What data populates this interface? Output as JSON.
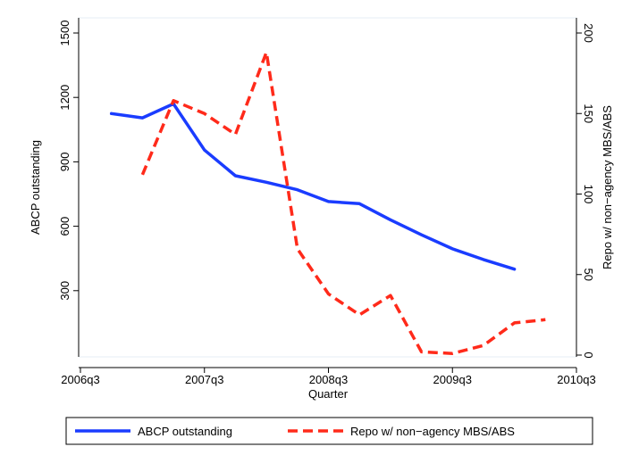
{
  "chart_data": {
    "type": "line",
    "xlabel": "Quarter",
    "x_ticks": [
      "2006q3",
      "2007q3",
      "2008q3",
      "2009q3",
      "2010q3"
    ],
    "x_range": [
      "2006q3",
      "2010q3"
    ],
    "x": [
      "2006q4",
      "2007q1",
      "2007q2",
      "2007q3",
      "2007q4",
      "2008q1",
      "2008q2",
      "2008q3",
      "2008q4",
      "2009q1",
      "2009q2",
      "2009q3",
      "2009q4",
      "2010q1",
      "2010q2"
    ],
    "y_left": {
      "label": "ABCP outstanding",
      "ticks": [
        "300",
        "600",
        "900",
        "1200",
        "1500"
      ],
      "range": [
        0,
        1500
      ]
    },
    "y_right": {
      "label": "Repo w/ non−agency MBS/ABS",
      "ticks": [
        "0",
        "50",
        "100",
        "150",
        "200"
      ],
      "range": [
        0,
        200
      ]
    },
    "series": [
      {
        "name": "ABCP outstanding",
        "axis": "left",
        "style": "solid",
        "color": "#1a3cff",
        "values": [
          1125,
          1105,
          1170,
          955,
          835,
          805,
          770,
          715,
          705,
          630,
          560,
          495,
          445,
          400,
          null
        ]
      },
      {
        "name": "Repo w/ non−agency MBS/ABS",
        "axis": "right",
        "style": "dashed",
        "color": "#ff2a1a",
        "values": [
          null,
          112,
          158,
          150,
          137,
          188,
          66,
          38,
          25,
          37,
          2,
          1,
          6,
          20,
          22
        ]
      }
    ],
    "grid": false,
    "legend_position": "bottom"
  }
}
